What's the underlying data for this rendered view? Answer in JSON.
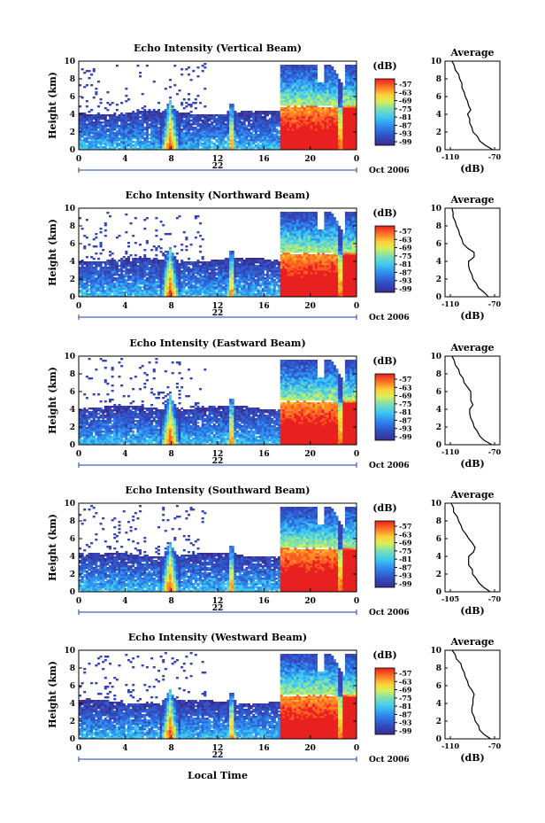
{
  "figure": {
    "xlabel": "Local Time",
    "date_label": "Oct 2006",
    "day_label": "22"
  },
  "chart_data": [
    {
      "type": "heatmap",
      "title": "Echo Intensity (Vertical Beam)",
      "xlabel": "",
      "ylabel": "Height (km)",
      "xlim": [
        0,
        24
      ],
      "ylim": [
        0,
        10
      ],
      "xticks": [
        "0",
        "4",
        "8",
        "12",
        "16",
        "20",
        "0"
      ],
      "yticks": [
        "0",
        "2",
        "4",
        "6",
        "8",
        "10"
      ],
      "colorbar": {
        "label": "(dB)",
        "ticks": [
          "-57",
          "-63",
          "-69",
          "-75",
          "-81",
          "-87",
          "-93",
          "-99"
        ]
      },
      "profile": {
        "title": "Average",
        "xlabel": "(dB)",
        "xlim": [
          -110,
          -70
        ],
        "ylim": [
          0,
          10
        ],
        "xticks": [
          "-110",
          "-70"
        ],
        "yticks": [
          "0",
          "2",
          "4",
          "6",
          "8",
          "10"
        ],
        "heights": [
          0,
          0.5,
          1,
          1.5,
          2,
          2.5,
          3,
          3.5,
          4,
          4.5,
          5,
          5.5,
          6,
          6.5,
          7,
          7.5,
          8,
          8.5,
          9,
          9.5,
          10
        ],
        "db": [
          -71,
          -79,
          -83,
          -86,
          -89,
          -91,
          -92,
          -93,
          -94,
          -92,
          -93,
          -95,
          -96,
          -98,
          -99,
          -100,
          -101,
          -103,
          -105,
          -107,
          -108
        ]
      }
    },
    {
      "type": "heatmap",
      "title": "Echo Intensity (Northward Beam)",
      "xlabel": "",
      "ylabel": "Height (km)",
      "xlim": [
        0,
        24
      ],
      "ylim": [
        0,
        10
      ],
      "xticks": [
        "0",
        "4",
        "8",
        "12",
        "16",
        "20",
        "0"
      ],
      "yticks": [
        "0",
        "2",
        "4",
        "6",
        "8",
        "10"
      ],
      "colorbar": {
        "label": "(dB)",
        "ticks": [
          "-57",
          "-63",
          "-69",
          "-75",
          "-81",
          "-87",
          "-93",
          "-99"
        ]
      },
      "profile": {
        "title": "Average",
        "xlabel": "(dB)",
        "xlim": [
          -110,
          -70
        ],
        "ylim": [
          0,
          10
        ],
        "xticks": [
          "-110",
          "-70"
        ],
        "yticks": [
          "0",
          "2",
          "4",
          "6",
          "8",
          "10"
        ],
        "heights": [
          0,
          0.5,
          1,
          1.5,
          2,
          2.5,
          3,
          3.5,
          4,
          4.5,
          5,
          5.5,
          6,
          6.5,
          7,
          7.5,
          8,
          8.5,
          9,
          9.5,
          10
        ],
        "db": [
          -75,
          -80,
          -84,
          -87,
          -89,
          -91,
          -92,
          -94,
          -93,
          -89,
          -88,
          -95,
          -98,
          -100,
          -101,
          -103,
          -104,
          -106,
          -107,
          -108,
          -108
        ]
      }
    },
    {
      "type": "heatmap",
      "title": "Echo Intensity (Eastward Beam)",
      "xlabel": "",
      "ylabel": "Height (km)",
      "xlim": [
        0,
        24
      ],
      "ylim": [
        0,
        10
      ],
      "xticks": [
        "0",
        "4",
        "8",
        "12",
        "16",
        "20",
        "0"
      ],
      "yticks": [
        "0",
        "2",
        "4",
        "6",
        "8",
        "10"
      ],
      "colorbar": {
        "label": "(dB)",
        "ticks": [
          "-57",
          "-63",
          "-69",
          "-75",
          "-81",
          "-87",
          "-93",
          "-99"
        ]
      },
      "profile": {
        "title": "Average",
        "xlabel": "(dB)",
        "xlim": [
          -110,
          -70
        ],
        "ylim": [
          0,
          10
        ],
        "xticks": [
          "-110",
          "-70"
        ],
        "yticks": [
          "0",
          "2",
          "4",
          "6",
          "8",
          "10"
        ],
        "heights": [
          0,
          0.5,
          1,
          1.5,
          2,
          2.5,
          3,
          3.5,
          4,
          4.5,
          5,
          5.5,
          6,
          6.5,
          7,
          7.5,
          8,
          8.5,
          9,
          9.5,
          10
        ],
        "db": [
          -72,
          -80,
          -83,
          -86,
          -88,
          -90,
          -91,
          -93,
          -92,
          -90,
          -91,
          -92,
          -91,
          -95,
          -97,
          -99,
          -101,
          -103,
          -105,
          -107,
          -108
        ]
      }
    },
    {
      "type": "heatmap",
      "title": "Echo Intensity (Southward Beam)",
      "xlabel": "",
      "ylabel": "Height (km)",
      "xlim": [
        0,
        24
      ],
      "ylim": [
        0,
        10
      ],
      "xticks": [
        "0",
        "4",
        "8",
        "12",
        "16",
        "20",
        "0"
      ],
      "yticks": [
        "0",
        "2",
        "4",
        "6",
        "8",
        "10"
      ],
      "colorbar": {
        "label": "(dB)",
        "ticks": [
          "-57",
          "-63",
          "-69",
          "-75",
          "-81",
          "-87",
          "-93",
          "-99"
        ]
      },
      "profile": {
        "title": "Average",
        "xlabel": "(dB)",
        "xlim": [
          -105,
          -70
        ],
        "ylim": [
          0,
          10
        ],
        "xticks": [
          "-105",
          "-70"
        ],
        "yticks": [
          "0",
          "2",
          "4",
          "6",
          "8",
          "10"
        ],
        "heights": [
          0,
          0.5,
          1,
          1.5,
          2,
          2.5,
          3,
          3.5,
          4,
          4.5,
          5,
          5.5,
          6,
          6.5,
          7,
          7.5,
          8,
          8.5,
          9,
          9.5,
          10
        ],
        "db": [
          -73,
          -79,
          -82,
          -85,
          -87,
          -88,
          -90,
          -91,
          -90,
          -87,
          -85,
          -88,
          -90,
          -93,
          -95,
          -97,
          -98,
          -100,
          -102,
          -103,
          -104
        ]
      }
    },
    {
      "type": "heatmap",
      "title": "Echo Intensity (Westward Beam)",
      "xlabel": "",
      "ylabel": "Height (km)",
      "xlim": [
        0,
        24
      ],
      "ylim": [
        0,
        10
      ],
      "xticks": [
        "0",
        "4",
        "8",
        "12",
        "16",
        "20",
        "0"
      ],
      "yticks": [
        "0",
        "2",
        "4",
        "6",
        "8",
        "10"
      ],
      "colorbar": {
        "label": "(dB)",
        "ticks": [
          "-57",
          "-63",
          "-69",
          "-75",
          "-81",
          "-87",
          "-93",
          "-99"
        ]
      },
      "profile": {
        "title": "Average",
        "xlabel": "(dB)",
        "xlim": [
          -110,
          -70
        ],
        "ylim": [
          0,
          10
        ],
        "xticks": [
          "-110",
          "-70"
        ],
        "yticks": [
          "0",
          "2",
          "4",
          "6",
          "8",
          "10"
        ],
        "heights": [
          0,
          0.5,
          1,
          1.5,
          2,
          2.5,
          3,
          3.5,
          4,
          4.5,
          5,
          5.5,
          6,
          6.5,
          7,
          7.5,
          8,
          8.5,
          9,
          9.5,
          10
        ],
        "db": [
          -73,
          -80,
          -83,
          -85,
          -87,
          -89,
          -90,
          -91,
          -89,
          -90,
          -88,
          -91,
          -93,
          -95,
          -96,
          -98,
          -99,
          -101,
          -104,
          -106,
          -108
        ]
      }
    }
  ]
}
